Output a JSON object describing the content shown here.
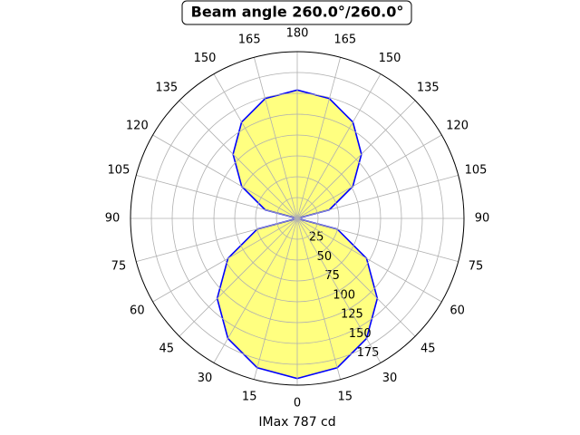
{
  "chart_data": {
    "type": "polar",
    "title": "Beam angle 260.0°/260.0°",
    "xlabel": "IMax 787 cd",
    "theta": [
      0,
      15,
      30,
      45,
      60,
      75,
      90,
      105,
      120,
      135,
      150,
      165,
      180,
      195,
      210,
      225,
      240,
      255,
      270,
      285,
      300,
      315,
      330,
      345,
      360
    ],
    "values": [
      192,
      185.4,
      166.3,
      135.8,
      96,
      49.7,
      0,
      39.9,
      77,
      108.9,
      133.4,
      148.8,
      154,
      148.8,
      133.4,
      108.9,
      77,
      39.9,
      0,
      49.7,
      96,
      135.8,
      166.3,
      185.4,
      192
    ],
    "color": "#0000ff",
    "fill": "#ffff80",
    "ylim": [
      0,
      200
    ],
    "yticks": [
      25,
      50,
      75,
      100,
      125,
      150,
      175
    ],
    "xticks": [
      0,
      15,
      30,
      45,
      60,
      75,
      90,
      105,
      120,
      135,
      150,
      165,
      180,
      {
        "value": 195,
        "label": "165"
      },
      {
        "value": 210,
        "label": "150"
      },
      {
        "value": 225,
        "label": "135"
      },
      {
        "value": 240,
        "label": "120"
      },
      {
        "value": 255,
        "label": "105"
      },
      {
        "value": 270,
        "label": "90"
      },
      {
        "value": 285,
        "label": "75"
      },
      {
        "value": 300,
        "label": "60"
      },
      {
        "value": 315,
        "label": "45"
      },
      {
        "value": 330,
        "label": "30"
      },
      {
        "value": 345,
        "label": "15"
      }
    ],
    "grid": true
  }
}
